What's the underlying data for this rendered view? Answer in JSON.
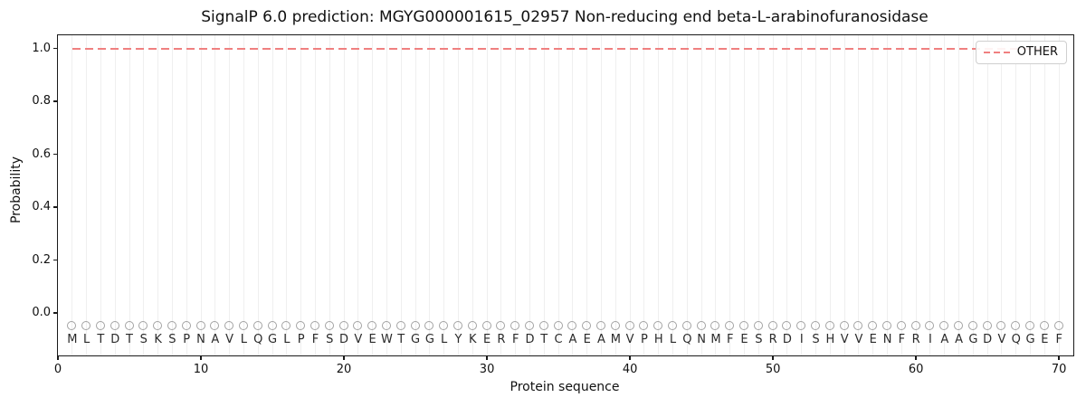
{
  "chart_data": {
    "type": "line",
    "title": "SignalP 6.0 prediction: MGYG000001615_02957 Non-reducing end beta-L-arabinofuranosidase",
    "xlabel": "Protein sequence",
    "ylabel": "Probability",
    "xlim": [
      0,
      71
    ],
    "ylim": [
      -0.16,
      1.05
    ],
    "x_ticks": [
      0,
      10,
      20,
      30,
      40,
      50,
      60,
      70
    ],
    "y_ticks": [
      "0.0",
      "0.2",
      "0.4",
      "0.6",
      "0.8",
      "1.0"
    ],
    "grid": {
      "vertical_per_residue": true,
      "horizontal": false,
      "color": "#efefef"
    },
    "series": [
      {
        "name": "OTHER",
        "shape": "hline",
        "y": 1.0,
        "x_start": 1,
        "x_end": 70,
        "color": "#f08080",
        "linestyle": "dashed"
      }
    ],
    "sequence": {
      "residues": "MLTDTSKSPNAVLQGLPFSDVEWTGGLYKERFDTCAEAMVPHLQNMFESRDISHVVENFRIAAGDVQGEF",
      "marker": "open-circle",
      "marker_y": -0.05,
      "label_y": -0.1,
      "marker_color": "#a3a3a3",
      "letter_color": "#2a2a2a"
    },
    "legend": {
      "position": "upper right",
      "entries": [
        {
          "label": "OTHER",
          "color": "#f08080",
          "linestyle": "dashed"
        }
      ]
    }
  }
}
